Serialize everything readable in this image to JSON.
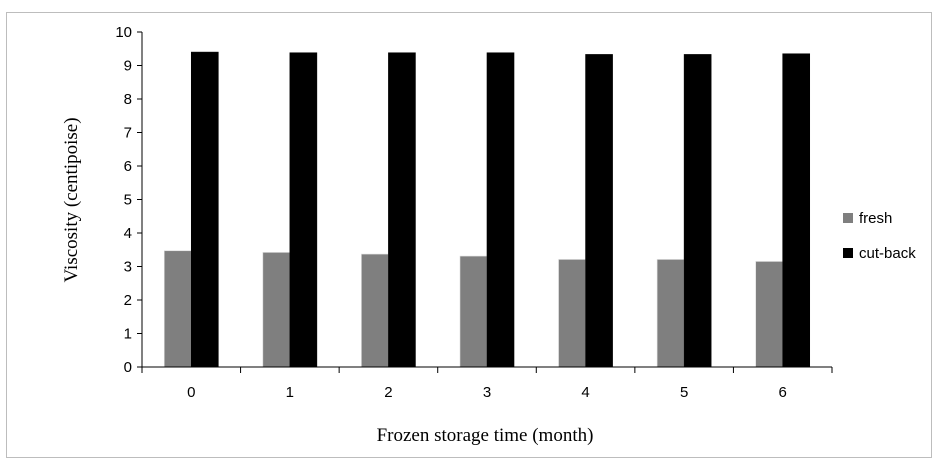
{
  "chart_data": {
    "type": "bar",
    "title": "",
    "xlabel": "Frozen storage time (month)",
    "ylabel": "Viscosity (centipoise)",
    "categories": [
      "0",
      "1",
      "2",
      "3",
      "4",
      "5",
      "6"
    ],
    "ylim": [
      0,
      10
    ],
    "yticks": [
      "0",
      "1",
      "2",
      "3",
      "4",
      "5",
      "6",
      "7",
      "8",
      "9",
      "10"
    ],
    "grid": false,
    "legend_position": "right",
    "series": [
      {
        "name": "fresh",
        "color": "#7f7f7f",
        "values": [
          3.47,
          3.42,
          3.37,
          3.31,
          3.21,
          3.21,
          3.15
        ]
      },
      {
        "name": "cut-back",
        "color": "#000000",
        "values": [
          9.4,
          9.38,
          9.38,
          9.38,
          9.33,
          9.33,
          9.35
        ]
      }
    ]
  }
}
